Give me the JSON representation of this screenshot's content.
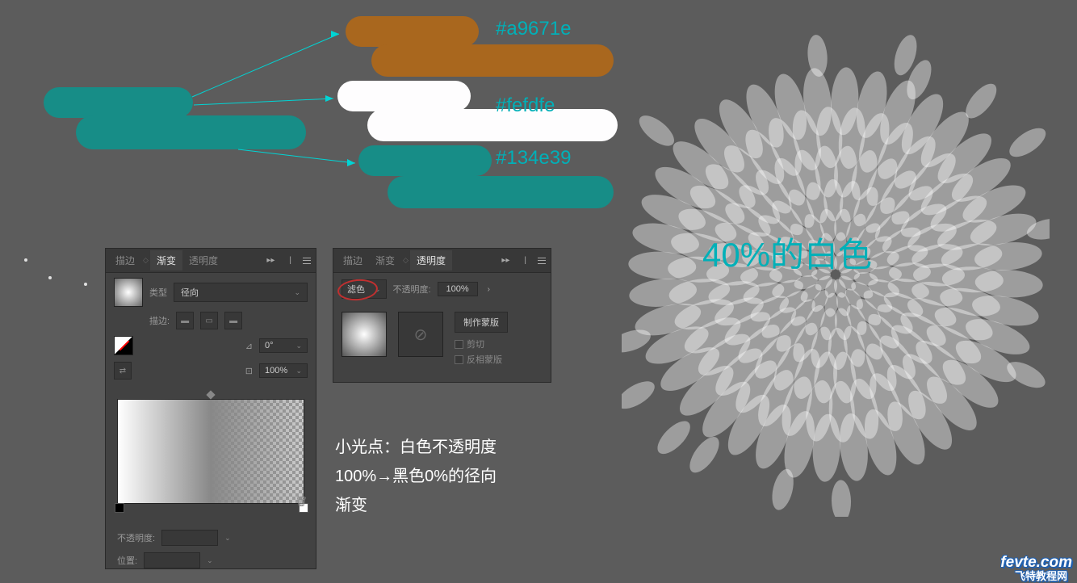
{
  "colors": {
    "amber_label": "#a9671e",
    "white_label": "#fefdfe",
    "teal_label": "#134e39"
  },
  "gradient_panel": {
    "tabs": {
      "stroke": "描边",
      "gradient": "渐变",
      "transparency": "透明度"
    },
    "type_label": "类型",
    "type_value": "径向",
    "stroke_label": "描边:",
    "angle_value": "0°",
    "ratio_value": "100%",
    "opacity_label": "不透明度:",
    "position_label": "位置:"
  },
  "transparency_panel": {
    "tabs": {
      "stroke": "描边",
      "gradient": "渐变",
      "transparency": "透明度"
    },
    "blend_mode": "滤色",
    "opacity_label": "不透明度:",
    "opacity_value": "100%",
    "make_mask": "制作蒙版",
    "clip": "剪切",
    "invert": "反相蒙版"
  },
  "annotation": {
    "line1": "小光点：白色不透明度",
    "line2": "100%→黑色0%的径向",
    "line3": "渐变"
  },
  "flower_label": "40%的白色",
  "watermark": {
    "main": "fevte.com",
    "sub": "飞特教程网"
  }
}
